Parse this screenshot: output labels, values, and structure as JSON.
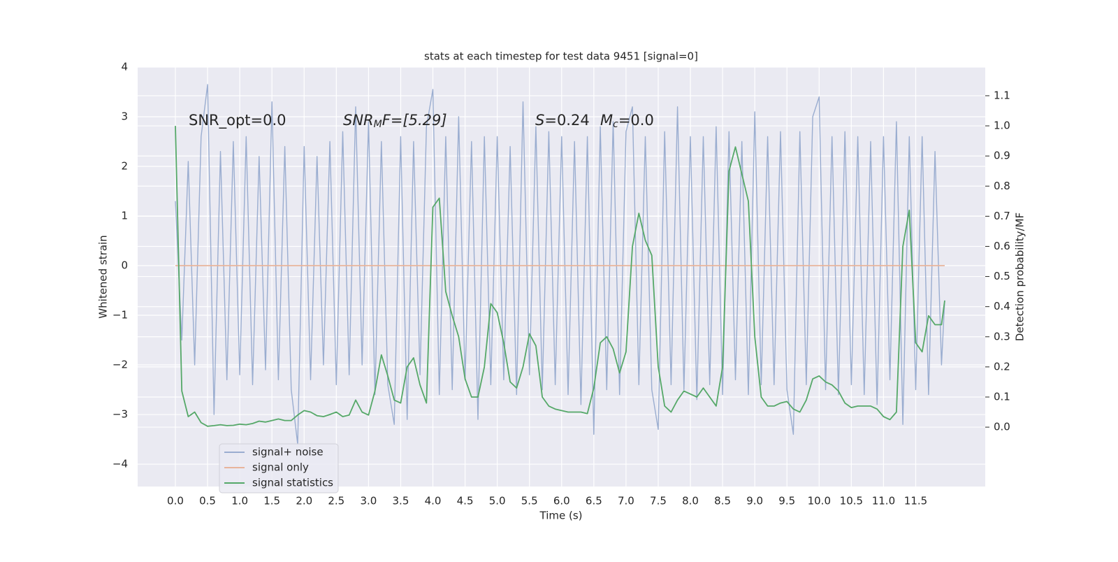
{
  "chart_data": {
    "type": "line",
    "title": "stats at each timestep for test data 9451 [signal=0]",
    "xlabel": "Time (s)",
    "ylabel": "Whitened strain",
    "y2label": "Detection probability/MF",
    "annotations": [
      [
        "SNR_opt=0.0"
      ],
      [
        "SNR",
        "M",
        "F=[5.29]"
      ],
      [
        "S",
        "=0.24",
        "M",
        "c",
        "=0.0"
      ]
    ],
    "x": [
      0,
      0.1,
      0.2,
      0.3,
      0.4,
      0.5,
      0.6,
      0.7,
      0.8,
      0.9,
      1,
      1.1,
      1.2,
      1.3,
      1.4,
      1.5,
      1.6,
      1.7,
      1.8,
      1.9,
      2,
      2.1,
      2.2,
      2.3,
      2.4,
      2.5,
      2.6,
      2.7,
      2.8,
      2.9,
      3,
      3.1,
      3.2,
      3.3,
      3.4,
      3.5,
      3.6,
      3.7,
      3.8,
      3.9,
      4,
      4.1,
      4.2,
      4.3,
      4.4,
      4.5,
      4.6,
      4.7,
      4.8,
      4.9,
      5,
      5.1,
      5.2,
      5.3,
      5.4,
      5.5,
      5.6,
      5.7,
      5.8,
      5.9,
      6,
      6.1,
      6.2,
      6.3,
      6.4,
      6.5,
      6.6,
      6.7,
      6.8,
      6.9,
      7,
      7.1,
      7.2,
      7.3,
      7.4,
      7.5,
      7.6,
      7.7,
      7.8,
      7.9,
      8,
      8.1,
      8.2,
      8.3,
      8.4,
      8.5,
      8.6,
      8.7,
      8.8,
      8.9,
      9,
      9.1,
      9.2,
      9.3,
      9.4,
      9.5,
      9.6,
      9.7,
      9.8,
      9.9,
      10,
      10.1,
      10.2,
      10.3,
      10.4,
      10.5,
      10.6,
      10.7,
      10.8,
      10.9,
      11,
      11.1,
      11.2,
      11.3,
      11.4,
      11.5,
      11.6,
      11.7,
      11.8,
      11.9,
      11.95
    ],
    "series": [
      {
        "name": "signal+ noise",
        "color": "#9aadd0",
        "axis": "y",
        "values": [
          1.3,
          -1.5,
          2.1,
          -2.0,
          2.6,
          3.65,
          -3.0,
          2.3,
          -2.3,
          2.5,
          -2.2,
          2.6,
          -2.4,
          2.2,
          -2.1,
          3.3,
          -2.3,
          2.4,
          -2.5,
          -3.6,
          2.4,
          -2.3,
          2.2,
          -2.0,
          2.5,
          -2.4,
          2.7,
          -2.2,
          3.2,
          -2.0,
          2.9,
          -2.6,
          2.5,
          -2.4,
          -3.2,
          2.6,
          -3.1,
          2.5,
          -2.2,
          2.8,
          3.55,
          -2.6,
          2.6,
          -2.5,
          3.0,
          -2.3,
          2.5,
          -3.1,
          2.6,
          -2.4,
          2.6,
          -2.3,
          2.4,
          -2.6,
          3.3,
          -2.2,
          2.8,
          -2.5,
          2.7,
          -2.4,
          2.6,
          -2.6,
          2.5,
          -2.8,
          2.6,
          -3.4,
          2.8,
          -2.5,
          2.9,
          -2.6,
          2.7,
          3.2,
          -2.4,
          2.6,
          -2.5,
          -3.3,
          2.7,
          -2.4,
          3.2,
          -2.5,
          2.6,
          -2.7,
          2.6,
          -2.4,
          2.8,
          -2.6,
          2.7,
          -2.3,
          2.5,
          -2.6,
          3.1,
          -2.4,
          2.6,
          -2.4,
          2.7,
          -2.5,
          -3.4,
          2.7,
          -2.4,
          3.0,
          3.4,
          -2.5,
          2.6,
          -2.6,
          2.7,
          -2.4,
          2.6,
          -2.6,
          2.5,
          -2.8,
          2.6,
          -2.3,
          2.9,
          -3.2,
          2.6,
          -2.5,
          2.6,
          -2.6,
          2.3,
          -2.0,
          -0.7
        ]
      },
      {
        "name": "signal only",
        "color": "#e8b49b",
        "axis": "y",
        "values": [
          0,
          0,
          0,
          0,
          0,
          0,
          0,
          0,
          0,
          0,
          0,
          0,
          0,
          0,
          0,
          0,
          0,
          0,
          0,
          0,
          0,
          0,
          0,
          0,
          0,
          0,
          0,
          0,
          0,
          0,
          0,
          0,
          0,
          0,
          0,
          0,
          0,
          0,
          0,
          0,
          0,
          0,
          0,
          0,
          0,
          0,
          0,
          0,
          0,
          0,
          0,
          0,
          0,
          0,
          0,
          0,
          0,
          0,
          0,
          0,
          0,
          0,
          0,
          0,
          0,
          0,
          0,
          0,
          0,
          0,
          0,
          0,
          0,
          0,
          0,
          0,
          0,
          0,
          0,
          0,
          0,
          0,
          0,
          0,
          0,
          0,
          0,
          0,
          0,
          0,
          0,
          0,
          0,
          0,
          0,
          0,
          0,
          0,
          0,
          0,
          0,
          0,
          0,
          0,
          0,
          0,
          0,
          0,
          0,
          0,
          0,
          0,
          0,
          0,
          0,
          0,
          0,
          0,
          0,
          0,
          0
        ]
      },
      {
        "name": "signal statistics",
        "color": "#55a868",
        "axis": "y2",
        "values": [
          1.0,
          0.12,
          0.035,
          0.05,
          0.015,
          0.003,
          0.005,
          0.008,
          0.005,
          0.006,
          0.01,
          0.008,
          0.012,
          0.02,
          0.017,
          0.022,
          0.027,
          0.022,
          0.022,
          0.04,
          0.055,
          0.05,
          0.038,
          0.035,
          0.042,
          0.05,
          0.035,
          0.04,
          0.09,
          0.05,
          0.04,
          0.12,
          0.24,
          0.17,
          0.09,
          0.08,
          0.2,
          0.23,
          0.14,
          0.08,
          0.73,
          0.76,
          0.45,
          0.37,
          0.3,
          0.16,
          0.1,
          0.1,
          0.2,
          0.41,
          0.38,
          0.28,
          0.15,
          0.13,
          0.2,
          0.31,
          0.27,
          0.1,
          0.07,
          0.06,
          0.055,
          0.05,
          0.05,
          0.05,
          0.045,
          0.13,
          0.28,
          0.3,
          0.26,
          0.18,
          0.25,
          0.6,
          0.71,
          0.62,
          0.57,
          0.2,
          0.07,
          0.05,
          0.09,
          0.12,
          0.11,
          0.1,
          0.13,
          0.1,
          0.07,
          0.2,
          0.85,
          0.93,
          0.84,
          0.75,
          0.3,
          0.1,
          0.07,
          0.07,
          0.08,
          0.085,
          0.06,
          0.05,
          0.09,
          0.16,
          0.17,
          0.15,
          0.14,
          0.12,
          0.08,
          0.065,
          0.07,
          0.07,
          0.07,
          0.06,
          0.035,
          0.025,
          0.05,
          0.6,
          0.72,
          0.28,
          0.25,
          0.37,
          0.34,
          0.34,
          0.42
        ]
      }
    ],
    "xlim": [
      -0.586,
      12.58
    ],
    "ylim": [
      -4.45,
      4.0
    ],
    "y2lim": [
      -0.197,
      1.195
    ],
    "xticks": [
      {
        "value": 0,
        "label": "0.0"
      },
      0.5,
      {
        "value": 1,
        "label": "1.0"
      },
      1.5,
      {
        "value": 2,
        "label": "2.0"
      },
      2.5,
      {
        "value": 3,
        "label": "3.0"
      },
      3.5,
      {
        "value": 4,
        "label": "4.0"
      },
      4.5,
      {
        "value": 5,
        "label": "5.0"
      },
      5.5,
      {
        "value": 6,
        "label": "6.0"
      },
      6.5,
      {
        "value": 7,
        "label": "7.0"
      },
      7.5,
      {
        "value": 8,
        "label": "8.0"
      },
      8.5,
      {
        "value": 9,
        "label": "9.0"
      },
      9.5,
      {
        "value": 10,
        "label": "10.0"
      },
      10.5,
      {
        "value": 11,
        "label": "11.0"
      },
      11.5
    ],
    "yticks": [
      {
        "value": -4,
        "label": "−4"
      },
      {
        "value": -3,
        "label": "−3"
      },
      {
        "value": -2,
        "label": "−2"
      },
      {
        "value": -1,
        "label": "−1"
      },
      0,
      1,
      2,
      3,
      4
    ],
    "y2ticks": [
      {
        "value": 0,
        "label": "0.0"
      },
      0.1,
      0.2,
      0.3,
      0.4,
      0.5,
      0.6,
      0.7,
      0.8,
      0.9,
      {
        "value": 1,
        "label": "1.0"
      },
      1.1
    ],
    "grid": true,
    "legend": "lower left"
  }
}
